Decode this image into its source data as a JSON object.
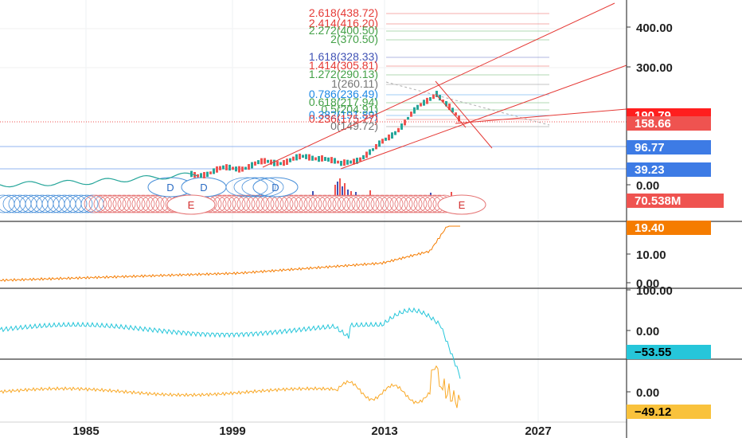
{
  "chart_data": {
    "type": "line",
    "x_axis_ticks": [
      "1985",
      "1999",
      "2013",
      "2027"
    ],
    "colors": {
      "fib_red": "#e53935",
      "fib_green": "#43a047",
      "fib_blue": "#3f51b5",
      "fib_teal": "#1e88e5",
      "fib_gray": "#757575",
      "candle_up": "#26a69a",
      "candle_down": "#ef5350",
      "pane2": "#f57c00",
      "pane3": "#26c6da",
      "pane4": "#f9a825",
      "channel": "#e53935",
      "hline": "#1e88e5"
    },
    "fibonacci_levels": [
      {
        "label": "2.618(438.72)",
        "color": "#e53935"
      },
      {
        "label": "2.414(416.20)",
        "color": "#e53935"
      },
      {
        "label": "2.272(400.50)",
        "color": "#43a047"
      },
      {
        "label": "2(370.50)",
        "color": "#43a047"
      },
      {
        "label": "1.618(328.33)",
        "color": "#3f51b5"
      },
      {
        "label": "1.414(305.81)",
        "color": "#e53935"
      },
      {
        "label": "1.272(290.13)",
        "color": "#43a047"
      },
      {
        "label": "1(260.11)",
        "color": "#757575"
      },
      {
        "label": "0.786(236.49)",
        "color": "#1e88e5"
      },
      {
        "label": "0.618(217.94)",
        "color": "#43a047"
      },
      {
        "label": "0.5(204.91)",
        "color": "#43a047"
      },
      {
        "label": "0.382(191.89)",
        "color": "#1e88e5"
      },
      {
        "label": "0.236(175.77)",
        "color": "#e53935"
      },
      {
        "label": "0(149.72)",
        "color": "#757575"
      }
    ],
    "panes": [
      {
        "name": "price",
        "scale": "log",
        "y_ticks": [
          "400.00",
          "300.00",
          "0.00"
        ],
        "value_tags": [
          {
            "text": "190.79",
            "bg": "#ff1e1e",
            "fg": "#ffffff"
          },
          {
            "text": "158.66",
            "bg": "#ef5350",
            "fg": "#ffffff"
          },
          {
            "text": "96.77",
            "bg": "#3d7be5",
            "fg": "#ffffff"
          },
          {
            "text": "39.23",
            "bg": "#3d7be5",
            "fg": "#ffffff"
          },
          {
            "text": "70.538M",
            "bg": "#ef5350",
            "fg": "#ffffff"
          }
        ],
        "dividend_markers": [
          "D",
          "D",
          "D"
        ],
        "earnings_markers": [
          "E",
          "E"
        ]
      },
      {
        "name": "indicator-1",
        "y_ticks": [
          "10.00",
          "0.00"
        ],
        "value_tags": [
          {
            "text": "19.40",
            "bg": "#f57c00",
            "fg": "#ffffff"
          }
        ]
      },
      {
        "name": "indicator-2",
        "y_ticks": [
          "100.00",
          "0.00"
        ],
        "value_tags": [
          {
            "text": "−53.55",
            "bg": "#26c6da",
            "fg": "#000000"
          }
        ]
      },
      {
        "name": "indicator-3",
        "y_ticks": [
          "0.00"
        ],
        "value_tags": [
          {
            "text": "−49.12",
            "bg": "#f9c23c",
            "fg": "#000000"
          }
        ]
      }
    ]
  }
}
